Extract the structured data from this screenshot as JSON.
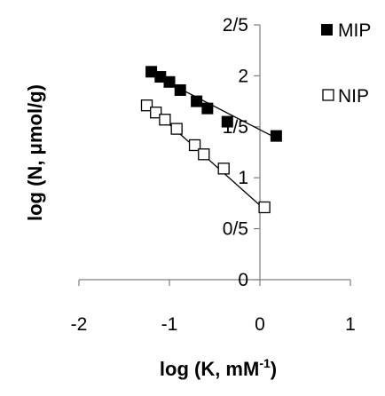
{
  "chart_data": {
    "type": "scatter",
    "xlabel_main": "log (K, mM",
    "xlabel_sup": "-1",
    "xlabel_end": ")",
    "ylabel": "log (N, μmol/g)",
    "xlim": [
      -2,
      1
    ],
    "ylim": [
      0,
      2.5
    ],
    "x_ticks": [
      -2,
      -1,
      0,
      1
    ],
    "x_tick_labels": [
      "-2",
      "-1",
      "0",
      "1"
    ],
    "y_ticks": [
      0,
      0.5,
      1,
      1.5,
      2,
      2.5
    ],
    "y_tick_labels": [
      "0",
      "0/5",
      "1",
      "1/5",
      "2",
      "2/5"
    ],
    "grid": false,
    "legend_position": "right",
    "series": [
      {
        "name": "MIP",
        "marker": "filled-square",
        "color": "#000000",
        "x": [
          -1.2,
          -1.1,
          -1.0,
          -0.88,
          -0.7,
          -0.58,
          -0.36,
          0.18
        ],
        "y": [
          2.04,
          1.99,
          1.94,
          1.86,
          1.75,
          1.68,
          1.55,
          1.41
        ],
        "trendline": {
          "x": [
            -1.25,
            0.2
          ],
          "y": [
            2.04,
            1.38
          ]
        }
      },
      {
        "name": "NIP",
        "marker": "open-square",
        "color": "#000000",
        "x": [
          -1.25,
          -1.15,
          -1.05,
          -0.92,
          -0.72,
          -0.62,
          -0.4,
          0.05
        ],
        "y": [
          1.71,
          1.64,
          1.57,
          1.48,
          1.32,
          1.23,
          1.09,
          0.71
        ],
        "trendline": {
          "x": [
            -1.25,
            0.05
          ],
          "y": [
            1.72,
            0.69
          ]
        }
      }
    ]
  }
}
